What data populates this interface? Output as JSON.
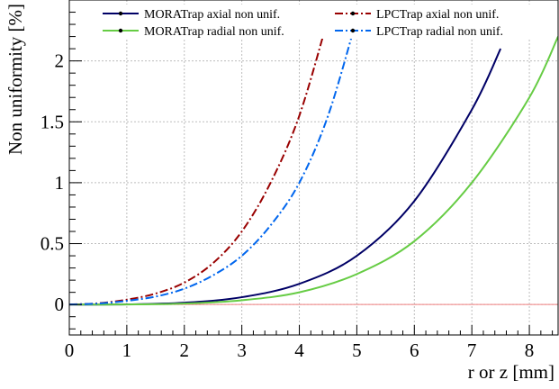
{
  "chart_data": {
    "type": "line",
    "xlabel": "r or z [mm]",
    "ylabel": "Non uniformity [%]",
    "xlim": [
      0,
      8.5
    ],
    "ylim": [
      -0.25,
      2.5
    ],
    "x_ticks": [
      0,
      1,
      2,
      3,
      4,
      5,
      6,
      7,
      8
    ],
    "y_ticks": [
      0,
      0.5,
      1,
      1.5,
      2
    ],
    "x_tick_labels": [
      "0",
      "1",
      "2",
      "3",
      "4",
      "5",
      "6",
      "7",
      "8"
    ],
    "y_tick_labels": [
      "0",
      "0.5",
      "1",
      "1.5",
      "2"
    ],
    "grid": true,
    "legend_position": "top",
    "reference_line": {
      "y": 0,
      "color": "#f08080"
    },
    "series": [
      {
        "name": "MORATrap axial non unif.",
        "color": "#000066",
        "dash": "solid",
        "x": [
          0,
          1,
          2,
          3,
          4,
          5,
          6,
          7,
          7.5
        ],
        "y": [
          0,
          0.001,
          0.015,
          0.06,
          0.17,
          0.4,
          0.85,
          1.6,
          2.1
        ]
      },
      {
        "name": "MORATrap radial non unif.",
        "color": "#66cc44",
        "dash": "solid",
        "x": [
          0,
          1,
          2,
          3,
          4,
          5,
          6,
          7,
          8,
          8.5
        ],
        "y": [
          0,
          0.0005,
          0.008,
          0.035,
          0.1,
          0.25,
          0.52,
          1.0,
          1.7,
          2.2
        ]
      },
      {
        "name": "LPCTrap axial non unif.",
        "color": "#990000",
        "dash": "dashdot",
        "x": [
          0,
          0.5,
          1,
          1.5,
          2,
          2.5,
          3,
          3.5,
          4,
          4.5
        ],
        "y": [
          0,
          0.01,
          0.04,
          0.09,
          0.18,
          0.34,
          0.6,
          1.0,
          1.55,
          2.35
        ]
      },
      {
        "name": "LPCTrap radial non unif.",
        "color": "#0066ee",
        "dash": "dashdot",
        "x": [
          0,
          0.5,
          1,
          1.5,
          2,
          2.5,
          3,
          3.5,
          4,
          4.5,
          5
        ],
        "y": [
          0,
          0.008,
          0.03,
          0.065,
          0.13,
          0.24,
          0.4,
          0.65,
          1.0,
          1.55,
          2.35
        ]
      }
    ]
  }
}
